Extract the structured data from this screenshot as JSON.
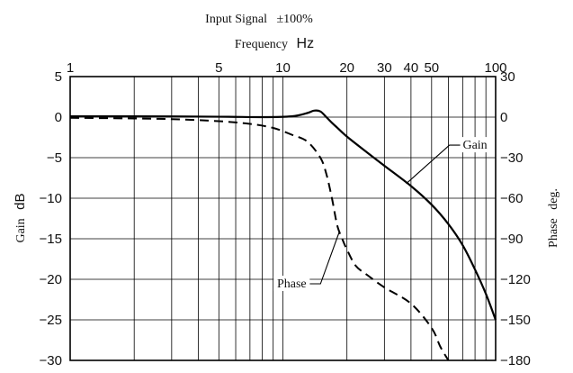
{
  "chart_data": {
    "type": "line",
    "title": "Input Signal   ±100%",
    "xlabel_text": "Frequency",
    "xlabel_unit": "Hz",
    "ylabel_left_text": "Gain",
    "ylabel_left_unit": "dB",
    "ylabel_right_text": "Phase",
    "ylabel_right_unit": "deg.",
    "x_scale": "log",
    "xlim": [
      1,
      100
    ],
    "ylim_left": [
      -30,
      5
    ],
    "ylim_right": [
      -180,
      30
    ],
    "x_tick_labels": [
      {
        "value": 1,
        "label": "1"
      },
      {
        "value": 5,
        "label": "5"
      },
      {
        "value": 10,
        "label": "10"
      },
      {
        "value": 20,
        "label": "20"
      },
      {
        "value": 30,
        "label": "30"
      },
      {
        "value": 40,
        "label": "40"
      },
      {
        "value": 50,
        "label": "50"
      },
      {
        "value": 100,
        "label": "100"
      }
    ],
    "y_left_ticks": [
      {
        "value": 5,
        "label": "5"
      },
      {
        "value": 0,
        "label": "0"
      },
      {
        "value": -5,
        "label": "-5"
      },
      {
        "value": -10,
        "label": "-10"
      },
      {
        "value": -15,
        "label": "-15"
      },
      {
        "value": -20,
        "label": "-20"
      },
      {
        "value": -25,
        "label": "-25"
      },
      {
        "value": -30,
        "label": "-30"
      }
    ],
    "y_right_ticks": [
      {
        "value": 30,
        "label": "30"
      },
      {
        "value": 0,
        "label": "0"
      },
      {
        "value": -30,
        "label": "-30"
      },
      {
        "value": -60,
        "label": "-60"
      },
      {
        "value": -90,
        "label": "-90"
      },
      {
        "value": -120,
        "label": "-120"
      },
      {
        "value": -150,
        "label": "-150"
      },
      {
        "value": -180,
        "label": "-180"
      }
    ],
    "grid": true,
    "series": [
      {
        "name": "Gain",
        "axis": "left",
        "style": "solid",
        "x": [
          1,
          2,
          5,
          8,
          11,
          13,
          14,
          15,
          16,
          17,
          18,
          20,
          25,
          30,
          40,
          50,
          60,
          70,
          80,
          90,
          100
        ],
        "y": [
          0.1,
          0.1,
          0.05,
          0.0,
          0.1,
          0.5,
          0.8,
          0.7,
          0.0,
          -0.7,
          -1.3,
          -2.4,
          -4.4,
          -6.0,
          -8.5,
          -10.8,
          -13.2,
          -15.8,
          -18.8,
          -21.8,
          -25.0
        ]
      },
      {
        "name": "Phase",
        "axis": "right",
        "style": "dashed",
        "x": [
          1,
          2,
          3,
          5,
          7,
          9,
          11,
          13,
          15,
          16,
          17,
          18,
          19,
          20,
          22,
          25,
          30,
          40,
          50,
          55,
          60
        ],
        "y": [
          -0.5,
          -1,
          -1.5,
          -3,
          -5,
          -8,
          -13,
          -18,
          -30,
          -42,
          -60,
          -80,
          -90,
          -98,
          -110,
          -117,
          -126,
          -138,
          -156,
          -170,
          -180
        ]
      }
    ],
    "annotations": [
      {
        "text": "Gain",
        "series": "Gain",
        "target_x": 38,
        "target_y": -8.2,
        "label_x": 80,
        "label_y": -3.9
      },
      {
        "text": "Phase",
        "series": "Phase",
        "target_x": 18.5,
        "target_y": -84,
        "label_x": 11,
        "label_y": -126
      }
    ]
  }
}
